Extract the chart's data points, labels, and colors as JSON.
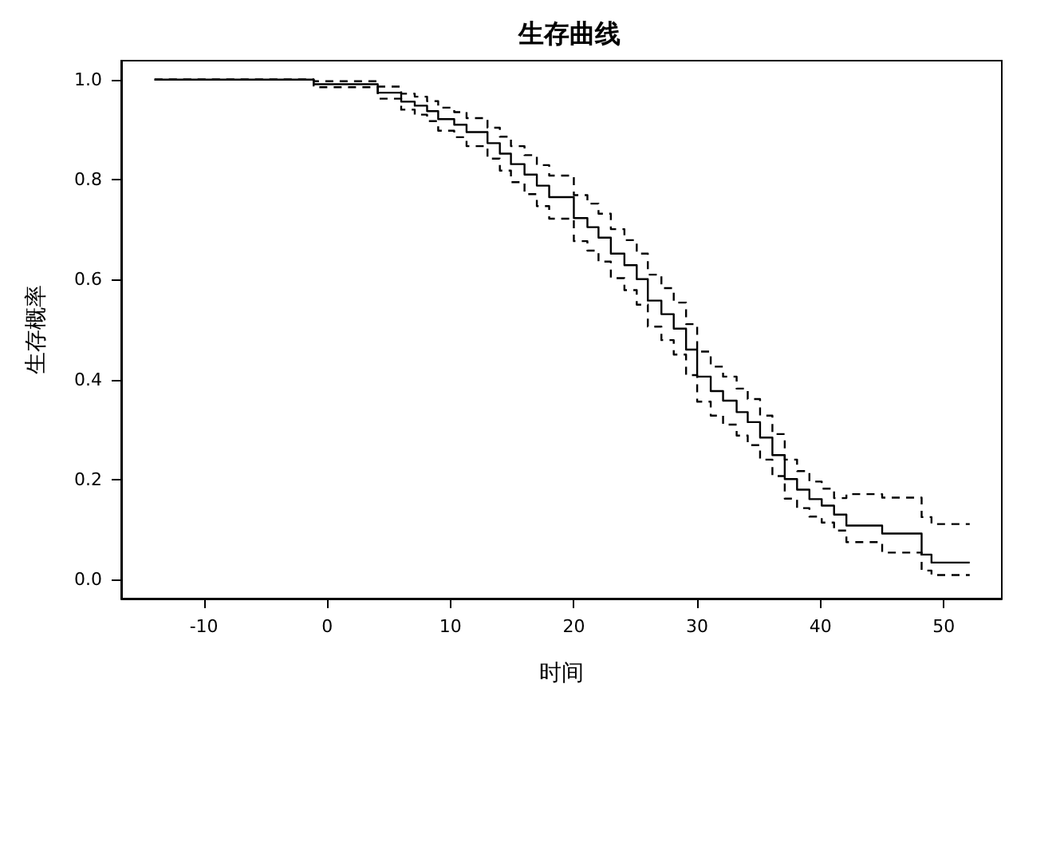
{
  "chart_data": {
    "type": "step",
    "title": "生存曲线",
    "xlabel": "时间",
    "ylabel": "生存概率",
    "xlim": [
      -16.7,
      54.7
    ],
    "xticks": [
      -10,
      0,
      10,
      20,
      30,
      40,
      50
    ],
    "ylim": [
      -0.038,
      1.038
    ],
    "yticks": [
      {
        "value": 0,
        "label": "0.0"
      },
      {
        "value": 0.2,
        "label": "0.2"
      },
      {
        "value": 0.4,
        "label": "0.4"
      },
      {
        "value": 0.6,
        "label": "0.6"
      },
      {
        "value": 0.8,
        "label": "0.8"
      },
      {
        "value": 1,
        "label": "1.0"
      }
    ],
    "marker": "none",
    "x": [
      -14,
      -1.1,
      4.1,
      6.0,
      7.1,
      8.1,
      9.0,
      10.3,
      11.3,
      13.0,
      14.0,
      14.9,
      16.0,
      17.0,
      18.0,
      20.0,
      21.1,
      22.0,
      23.0,
      24.1,
      25.1,
      26.0,
      27.1,
      28.1,
      29.1,
      30.0,
      31.1,
      32.1,
      33.2,
      34.1,
      35.1,
      36.1,
      37.1,
      38.1,
      39.1,
      40.1,
      41.1,
      42.1,
      45.0,
      48.2,
      49.0,
      52.1
    ],
    "series": [
      {
        "color": "#000000",
        "line_style": "solid",
        "values": [
          1,
          0.991,
          0.974,
          0.956,
          0.948,
          0.937,
          0.921,
          0.91,
          0.895,
          0.873,
          0.852,
          0.831,
          0.81,
          0.788,
          0.765,
          0.723,
          0.705,
          0.684,
          0.652,
          0.629,
          0.601,
          0.558,
          0.531,
          0.502,
          0.46,
          0.406,
          0.377,
          0.358,
          0.335,
          0.315,
          0.284,
          0.249,
          0.201,
          0.18,
          0.161,
          0.148,
          0.13,
          0.108,
          0.092,
          0.05,
          0.034,
          0.034
        ]
      },
      {
        "color": "#000000",
        "line_style": "dashed",
        "values": [
          1,
          0.985,
          0.962,
          0.94,
          0.93,
          0.917,
          0.898,
          0.885,
          0.867,
          0.842,
          0.818,
          0.795,
          0.771,
          0.747,
          0.722,
          0.677,
          0.658,
          0.636,
          0.603,
          0.579,
          0.55,
          0.506,
          0.479,
          0.45,
          0.409,
          0.356,
          0.328,
          0.31,
          0.288,
          0.269,
          0.24,
          0.207,
          0.162,
          0.143,
          0.126,
          0.114,
          0.098,
          0.075,
          0.054,
          0.018,
          0.009,
          0.009
        ]
      },
      {
        "color": "#000000",
        "line_style": "dashed",
        "values": [
          1,
          0.997,
          0.986,
          0.972,
          0.966,
          0.957,
          0.944,
          0.935,
          0.923,
          0.904,
          0.886,
          0.867,
          0.849,
          0.829,
          0.808,
          0.769,
          0.752,
          0.732,
          0.701,
          0.679,
          0.652,
          0.61,
          0.583,
          0.554,
          0.511,
          0.456,
          0.426,
          0.406,
          0.382,
          0.361,
          0.328,
          0.291,
          0.24,
          0.217,
          0.196,
          0.182,
          0.163,
          0.171,
          0.164,
          0.125,
          0.111,
          0.111
        ]
      }
    ]
  }
}
